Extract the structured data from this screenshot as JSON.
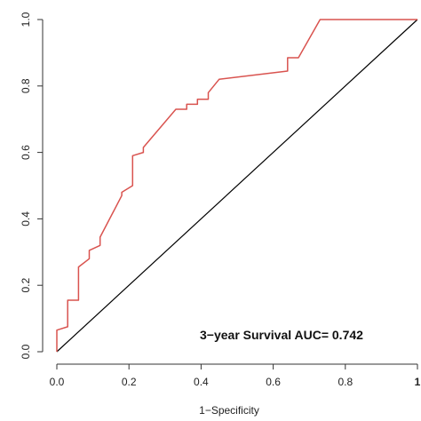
{
  "chart_data": {
    "type": "line",
    "title": "",
    "xlabel": "1−Specificity",
    "ylabel": "",
    "xlim": [
      0,
      1
    ],
    "ylim": [
      0,
      1
    ],
    "x_ticks": [
      "0.0",
      "0.2",
      "0.4",
      "0.6",
      "0.8",
      "1"
    ],
    "y_ticks": [
      "0.0",
      "0.2",
      "0.4",
      "0.6",
      "0.8",
      "1.0"
    ],
    "grid": false,
    "annotation": "3−year Survival AUC= 0.742",
    "colors": {
      "roc": "#d9534f",
      "reference": "#000000",
      "axis": "#333333"
    },
    "series": [
      {
        "values_xy": [
          [
            0.0,
            0.0
          ],
          [
            0.0,
            0.065
          ],
          [
            0.03,
            0.075
          ],
          [
            0.03,
            0.155
          ],
          [
            0.06,
            0.155
          ],
          [
            0.06,
            0.255
          ],
          [
            0.09,
            0.28
          ],
          [
            0.09,
            0.305
          ],
          [
            0.12,
            0.32
          ],
          [
            0.12,
            0.345
          ],
          [
            0.18,
            0.47
          ],
          [
            0.18,
            0.48
          ],
          [
            0.21,
            0.5
          ],
          [
            0.21,
            0.59
          ],
          [
            0.24,
            0.6
          ],
          [
            0.24,
            0.615
          ],
          [
            0.33,
            0.73
          ],
          [
            0.36,
            0.73
          ],
          [
            0.36,
            0.745
          ],
          [
            0.39,
            0.745
          ],
          [
            0.39,
            0.76
          ],
          [
            0.42,
            0.76
          ],
          [
            0.42,
            0.78
          ],
          [
            0.45,
            0.82
          ],
          [
            0.64,
            0.845
          ],
          [
            0.64,
            0.885
          ],
          [
            0.67,
            0.885
          ],
          [
            0.73,
            1.0
          ],
          [
            1.0,
            1.0
          ]
        ]
      },
      {
        "values_xy": [
          [
            0,
            0
          ],
          [
            1,
            1
          ]
        ]
      }
    ]
  }
}
